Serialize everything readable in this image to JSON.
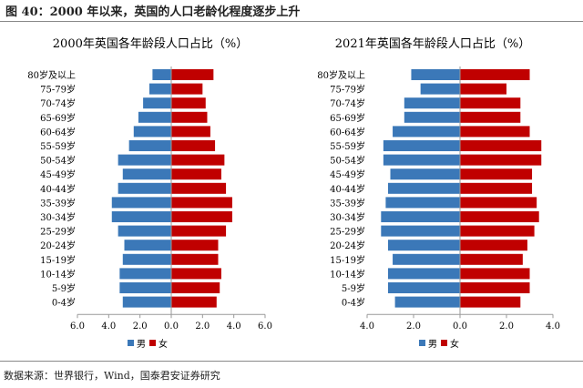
{
  "header": {
    "title": "图 40：2000 年以来，英国的人口老龄化程度逐步上升"
  },
  "footer": {
    "source": "数据来源：世界银行，Wind，国泰君安证券研究"
  },
  "colors": {
    "male": "#3b78b8",
    "female": "#c00000"
  },
  "chart_data": [
    {
      "type": "bar",
      "orientation": "horizontal-population-pyramid",
      "title": "2000年英国各年龄段人口占比（%）",
      "categories": [
        "80岁及以上",
        "75-79岁",
        "70-74岁",
        "65-69岁",
        "60-64岁",
        "55-59岁",
        "50-54岁",
        "45-49岁",
        "40-44岁",
        "35-39岁",
        "30-34岁",
        "25-29岁",
        "20-24岁",
        "15-19岁",
        "10-14岁",
        "5-9岁",
        "0-4岁"
      ],
      "series": [
        {
          "name": "男",
          "values": [
            1.2,
            1.4,
            1.8,
            2.1,
            2.4,
            2.7,
            3.4,
            3.1,
            3.4,
            3.8,
            3.8,
            3.4,
            3.0,
            3.1,
            3.3,
            3.3,
            3.1
          ]
        },
        {
          "name": "女",
          "values": [
            2.7,
            2.0,
            2.2,
            2.3,
            2.5,
            2.8,
            3.4,
            3.2,
            3.5,
            3.9,
            3.9,
            3.5,
            3.0,
            3.0,
            3.2,
            3.1,
            2.9
          ]
        }
      ],
      "xlim": [
        -6,
        6
      ],
      "xticks": [
        "6.0",
        "4.0",
        "2.0",
        "0.0",
        "2.0",
        "4.0",
        "6.0"
      ],
      "legend": "bottom",
      "grid": false
    },
    {
      "type": "bar",
      "orientation": "horizontal-population-pyramid",
      "title": "2021年英国各年龄段人口占比（%）",
      "categories": [
        "80岁及以上",
        "75-79岁",
        "70-74岁",
        "65-69岁",
        "60-64岁",
        "55-59岁",
        "50-54岁",
        "45-49岁",
        "40-44岁",
        "35-39岁",
        "30-34岁",
        "25-29岁",
        "20-24岁",
        "15-19岁",
        "10-14岁",
        "5-9岁",
        "0-4岁"
      ],
      "series": [
        {
          "name": "男",
          "values": [
            2.1,
            1.7,
            2.4,
            2.4,
            2.9,
            3.3,
            3.3,
            3.0,
            3.1,
            3.2,
            3.4,
            3.4,
            3.1,
            2.9,
            3.1,
            3.1,
            2.8
          ]
        },
        {
          "name": "女",
          "values": [
            3.0,
            2.0,
            2.6,
            2.6,
            3.0,
            3.5,
            3.5,
            3.1,
            3.1,
            3.3,
            3.4,
            3.2,
            2.9,
            2.7,
            3.0,
            3.0,
            2.6
          ]
        }
      ],
      "xlim": [
        -4,
        4
      ],
      "xticks": [
        "4.0",
        "2.0",
        "0.0",
        "2.0",
        "4.0"
      ],
      "legend": "bottom",
      "grid": false
    }
  ]
}
